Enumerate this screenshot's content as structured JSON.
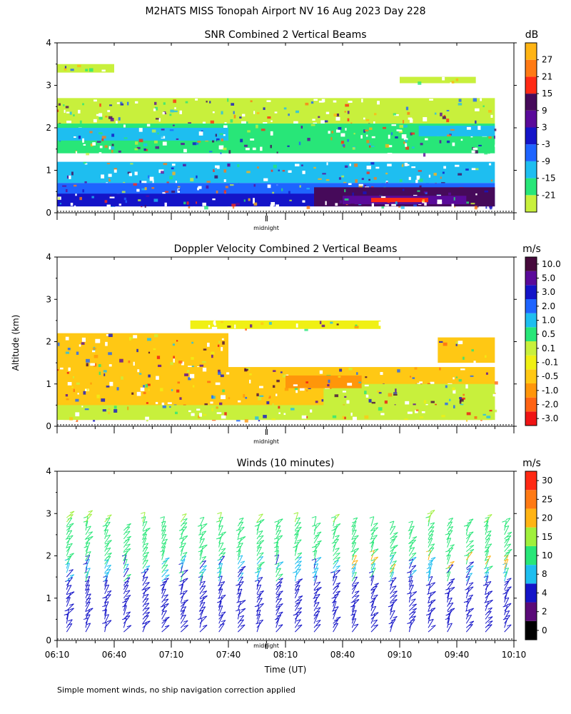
{
  "header": {
    "title": "M2HATS MISS Tonopah Airport NV  16 Aug 2023 Day 228"
  },
  "figure": {
    "y_axis_label": "Altitude (km)",
    "x_axis_label": "Time (UT)",
    "midnight_label": "midnight",
    "footnote": "Simple moment winds, no ship navigation correction applied"
  },
  "chart_data": [
    {
      "type": "heatmap",
      "title": "SNR Combined 2 Vertical Beams",
      "unit": "dB",
      "ylim": [
        0,
        4
      ],
      "yticks": [
        "0",
        "1",
        "2",
        "3",
        "4"
      ],
      "colorbar": {
        "colors": [
          "#c8f03c",
          "#28e678",
          "#1ebef0",
          "#1e64ff",
          "#1414c8",
          "#5a0a9a",
          "#460a5a",
          "#ff2a14",
          "#ff7a14",
          "#ffb414"
        ],
        "labels": [
          "-21",
          "-15",
          "-9",
          "-3",
          "3",
          "9",
          "15",
          "21",
          "27"
        ]
      },
      "layers": [
        {
          "top_km": 3.5,
          "bottom_km": 3.3,
          "start_min": 0,
          "end_min": 30,
          "color": "#c8f03c"
        },
        {
          "top_km": 3.2,
          "bottom_km": 3.05,
          "start_min": 180,
          "end_min": 220,
          "color": "#c8f03c"
        },
        {
          "top_km": 2.7,
          "bottom_km": 2.1,
          "start_min": 0,
          "end_min": 230,
          "color": "#c8f03c"
        },
        {
          "top_km": 2.1,
          "bottom_km": 1.4,
          "start_min": 0,
          "end_min": 230,
          "color": "#28e678"
        },
        {
          "top_km": 2.0,
          "bottom_km": 1.7,
          "start_min": 0,
          "end_min": 90,
          "color": "#1ebef0"
        },
        {
          "top_km": 2.05,
          "bottom_km": 1.8,
          "start_min": 190,
          "end_min": 230,
          "color": "#1ebef0"
        },
        {
          "top_km": 1.2,
          "bottom_km": 0.7,
          "start_min": 0,
          "end_min": 230,
          "color": "#1ebef0"
        },
        {
          "top_km": 0.7,
          "bottom_km": 0.15,
          "start_min": 0,
          "end_min": 230,
          "color": "#1e64ff"
        },
        {
          "top_km": 0.45,
          "bottom_km": 0.15,
          "start_min": 0,
          "end_min": 135,
          "color": "#1414c8"
        },
        {
          "top_km": 0.6,
          "bottom_km": 0.15,
          "start_min": 135,
          "end_min": 230,
          "color": "#460a5a"
        },
        {
          "top_km": 0.4,
          "bottom_km": 0.2,
          "start_min": 150,
          "end_min": 215,
          "color": "#5a0a9a"
        },
        {
          "top_km": 0.35,
          "bottom_km": 0.25,
          "start_min": 165,
          "end_min": 195,
          "color": "#ff2a14"
        }
      ]
    },
    {
      "type": "heatmap",
      "title": "Doppler Velocity Combined 2 Vertical Beams",
      "unit": "m/s",
      "ylim": [
        0,
        4
      ],
      "yticks": [
        "0",
        "1",
        "2",
        "3",
        "4"
      ],
      "colorbar": {
        "colors": [
          "#f01414",
          "#ff6414",
          "#ff960a",
          "#ffc814",
          "#f0f014",
          "#c8f03c",
          "#28e678",
          "#1ebef0",
          "#1e64ff",
          "#1414c8",
          "#5a0a9a",
          "#460a3c"
        ],
        "labels": [
          "-3.0",
          "-2.0",
          "-1.0",
          "-0.5",
          "-0.1",
          "0.1",
          "0.5",
          "1.0",
          "2.0",
          "3.0",
          "5.0",
          "10.0"
        ]
      },
      "layers": [
        {
          "top_km": 2.2,
          "bottom_km": 1.2,
          "start_min": 0,
          "end_min": 90,
          "color": "#ffc814"
        },
        {
          "top_km": 2.1,
          "bottom_km": 1.5,
          "start_min": 200,
          "end_min": 230,
          "color": "#ffc814"
        },
        {
          "top_km": 1.4,
          "bottom_km": 0.15,
          "start_min": 0,
          "end_min": 230,
          "color": "#ffc814"
        },
        {
          "top_km": 1.0,
          "bottom_km": 0.15,
          "start_min": 140,
          "end_min": 230,
          "color": "#c8f03c"
        },
        {
          "top_km": 0.5,
          "bottom_km": 0.15,
          "start_min": 0,
          "end_min": 230,
          "color": "#c8f03c"
        },
        {
          "top_km": 1.2,
          "bottom_km": 0.9,
          "start_min": 120,
          "end_min": 160,
          "color": "#ff960a"
        },
        {
          "top_km": 2.5,
          "bottom_km": 2.3,
          "start_min": 70,
          "end_min": 170,
          "color": "#f0f014"
        }
      ]
    },
    {
      "type": "wind-barbs",
      "title": "Winds (10 minutes)",
      "unit": "m/s",
      "ylim": [
        0,
        4
      ],
      "yticks": [
        "0",
        "1",
        "2",
        "3",
        "4"
      ],
      "xticks": [
        "06:10",
        "06:40",
        "07:10",
        "07:40",
        "08:10",
        "08:40",
        "09:10",
        "09:40",
        "10:10"
      ],
      "midnight_min": 110,
      "colorbar": {
        "colors": [
          "#000000",
          "#5a0a78",
          "#1414c8",
          "#1ebef0",
          "#28e678",
          "#a0f03c",
          "#ffb414",
          "#ff7a14",
          "#ff2a14"
        ],
        "labels": [
          "0",
          "2",
          "4",
          "8",
          "10",
          "15",
          "20",
          "25",
          "30"
        ]
      },
      "speed_by_height": [
        {
          "top_km": 1.4,
          "speed": 6
        },
        {
          "top_km": 1.9,
          "speed": 9
        },
        {
          "top_km": 2.8,
          "speed": 13
        },
        {
          "top_km": 4.0,
          "speed": 18
        }
      ]
    }
  ]
}
